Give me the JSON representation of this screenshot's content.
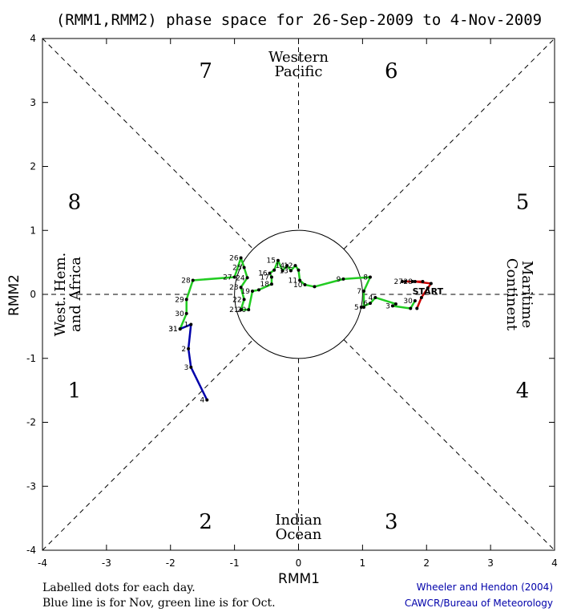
{
  "chart_data": {
    "type": "line",
    "title": "(RMM1,RMM2) phase space for 26-Sep-2009 to  4-Nov-2009",
    "xlabel": "RMM1",
    "ylabel": "RMM2",
    "xlim": [
      -4,
      4
    ],
    "ylim": [
      -4,
      4
    ],
    "xticks": [
      "-4",
      "-3",
      "-2",
      "-1",
      "0",
      "1",
      "2",
      "3",
      "4"
    ],
    "yticks": [
      "-4",
      "-3",
      "-2",
      "-1",
      "0",
      "1",
      "2",
      "3",
      "4"
    ],
    "phases": [
      {
        "label": "1",
        "x": -3.5,
        "y": -1.5
      },
      {
        "label": "2",
        "x": -1.45,
        "y": -3.55
      },
      {
        "label": "3",
        "x": 1.45,
        "y": -3.55
      },
      {
        "label": "4",
        "x": 3.5,
        "y": -1.5
      },
      {
        "label": "5",
        "x": 3.5,
        "y": 1.45
      },
      {
        "label": "6",
        "x": 1.45,
        "y": 3.5
      },
      {
        "label": "7",
        "x": -1.45,
        "y": 3.5
      },
      {
        "label": "8",
        "x": -3.5,
        "y": 1.45
      }
    ],
    "regions": {
      "top": [
        "Western",
        "Pacific"
      ],
      "bottom": [
        "Indian",
        "Ocean"
      ],
      "left": [
        "West. Hem.",
        "and Africa"
      ],
      "right": [
        "Maritime",
        "Continent"
      ]
    },
    "start_label": "START",
    "series": [
      {
        "color": "#cc0000",
        "points": [
          {
            "label": "",
            "x": 1.85,
            "y": -0.22
          },
          {
            "label": "",
            "x": 1.92,
            "y": -0.05
          },
          {
            "label": "",
            "x": 2.02,
            "y": 0.1
          },
          {
            "label": "",
            "x": 2.07,
            "y": 0.17
          },
          {
            "label": "28",
            "x": 1.82,
            "y": 0.2
          },
          {
            "label": "",
            "x": 1.94,
            "y": 0.2
          },
          {
            "label": "27",
            "x": 1.67,
            "y": 0.2
          },
          {
            "label": "",
            "x": 1.78,
            "y": 0.2
          },
          {
            "label": "",
            "x": 1.62,
            "y": 0.2
          }
        ]
      },
      {
        "color": "#22cc22",
        "points": [
          {
            "label": "30",
            "x": 1.82,
            "y": -0.1
          },
          {
            "label": "",
            "x": 1.75,
            "y": -0.22
          },
          {
            "label": "3",
            "x": 1.47,
            "y": -0.18
          },
          {
            "label": "",
            "x": 1.52,
            "y": -0.15
          },
          {
            "label": "4",
            "x": 1.2,
            "y": -0.05
          },
          {
            "label": "6",
            "x": 1.12,
            "y": -0.14
          },
          {
            "label": "5",
            "x": 0.98,
            "y": -0.2
          },
          {
            "label": "",
            "x": 1.02,
            "y": -0.2
          },
          {
            "label": "7",
            "x": 1.02,
            "y": 0.05
          },
          {
            "label": "8",
            "x": 1.12,
            "y": 0.27
          },
          {
            "label": "9",
            "x": 0.7,
            "y": 0.24
          },
          {
            "label": "",
            "x": 0.25,
            "y": 0.12
          },
          {
            "label": "10",
            "x": 0.1,
            "y": 0.15
          },
          {
            "label": "11",
            "x": 0.02,
            "y": 0.22
          },
          {
            "label": "",
            "x": 0.0,
            "y": 0.38
          },
          {
            "label": "12",
            "x": -0.05,
            "y": 0.45
          },
          {
            "label": "13",
            "x": -0.12,
            "y": 0.37
          },
          {
            "label": "14",
            "x": -0.18,
            "y": 0.45
          },
          {
            "label": "",
            "x": -0.25,
            "y": 0.37
          },
          {
            "label": "15",
            "x": -0.32,
            "y": 0.53
          },
          {
            "label": "",
            "x": -0.38,
            "y": 0.38
          },
          {
            "label": "16",
            "x": -0.45,
            "y": 0.33
          },
          {
            "label": "17",
            "x": -0.42,
            "y": 0.27
          },
          {
            "label": "18",
            "x": -0.42,
            "y": 0.16
          },
          {
            "label": "",
            "x": -0.62,
            "y": 0.07
          },
          {
            "label": "19",
            "x": -0.72,
            "y": 0.05
          },
          {
            "label": "20",
            "x": -0.78,
            "y": -0.24
          },
          {
            "label": "21",
            "x": -0.9,
            "y": -0.24
          },
          {
            "label": "22",
            "x": -0.85,
            "y": -0.08
          },
          {
            "label": "23",
            "x": -0.9,
            "y": 0.11
          },
          {
            "label": "24",
            "x": -0.8,
            "y": 0.26
          },
          {
            "label": "25",
            "x": -0.85,
            "y": 0.42
          },
          {
            "label": "26",
            "x": -0.9,
            "y": 0.57
          },
          {
            "label": "27",
            "x": -1.0,
            "y": 0.27
          },
          {
            "label": "28",
            "x": -1.65,
            "y": 0.22
          },
          {
            "label": "29",
            "x": -1.75,
            "y": -0.08
          },
          {
            "label": "30",
            "x": -1.75,
            "y": -0.3
          },
          {
            "label": "31",
            "x": -1.85,
            "y": -0.54
          }
        ]
      },
      {
        "color": "#0000aa",
        "points": [
          {
            "label": "31",
            "x": -1.85,
            "y": -0.54
          },
          {
            "label": "1",
            "x": -1.68,
            "y": -0.47
          },
          {
            "label": "2",
            "x": -1.72,
            "y": -0.85
          },
          {
            "label": "3",
            "x": -1.68,
            "y": -1.14
          },
          {
            "label": "4",
            "x": -1.43,
            "y": -1.65
          }
        ]
      }
    ]
  },
  "footnotes": {
    "line1": "Labelled dots for each day.",
    "line2": "Blue line is for Nov, green line is for Oct."
  },
  "credits": {
    "line1": "Wheeler and Hendon (2004)",
    "line2": "CAWCR/Bureau of Meteorology"
  }
}
